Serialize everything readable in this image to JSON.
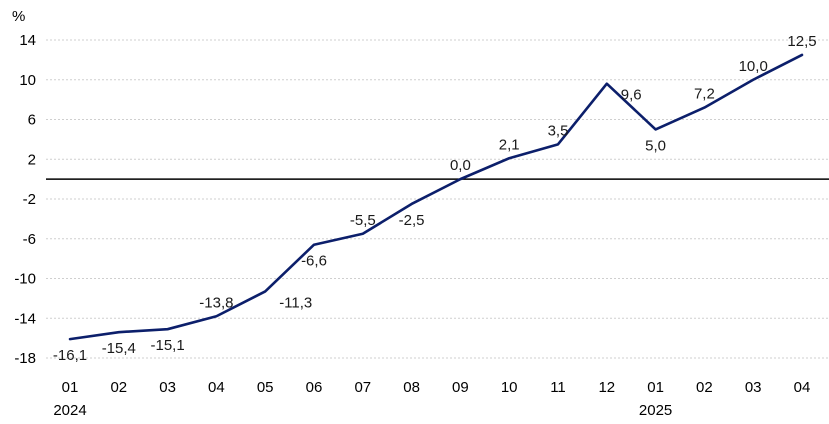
{
  "chart_data": {
    "type": "line",
    "ylabel": "%",
    "ylim": [
      -18,
      14
    ],
    "yticks": [
      "14",
      "10",
      "6",
      "2",
      "-2",
      "-6",
      "-10",
      "-14",
      "-18"
    ],
    "ytick_values": [
      14,
      10,
      6,
      2,
      -2,
      -6,
      -10,
      -14,
      -18
    ],
    "categories": [
      "01",
      "02",
      "03",
      "04",
      "05",
      "06",
      "07",
      "08",
      "09",
      "10",
      "11",
      "12",
      "01",
      "02",
      "03",
      "04"
    ],
    "year_labels": [
      {
        "index": 0,
        "text": "2024"
      },
      {
        "index": 12,
        "text": "2025"
      }
    ],
    "series": [
      {
        "values": [
          -16.1,
          -15.4,
          -15.1,
          -13.8,
          -11.3,
          -6.6,
          -5.5,
          -2.5,
          0.0,
          2.1,
          3.5,
          9.6,
          5.0,
          7.2,
          10.0,
          12.5
        ],
        "color": "#0c1f6b"
      }
    ],
    "data_labels": [
      {
        "index": 0,
        "text": "-16,1",
        "pos": "below"
      },
      {
        "index": 1,
        "text": "-15,4",
        "pos": "below"
      },
      {
        "index": 2,
        "text": "-15,1",
        "pos": "below"
      },
      {
        "index": 3,
        "text": "-13,8",
        "pos": "above"
      },
      {
        "index": 4,
        "text": "-11,3",
        "pos": "right"
      },
      {
        "index": 5,
        "text": "-6,6",
        "pos": "below"
      },
      {
        "index": 6,
        "text": "-5,5",
        "pos": "above"
      },
      {
        "index": 7,
        "text": "-2,5",
        "pos": "below"
      },
      {
        "index": 8,
        "text": "0,0",
        "pos": "above"
      },
      {
        "index": 9,
        "text": "2,1",
        "pos": "above"
      },
      {
        "index": 10,
        "text": "3,5",
        "pos": "above"
      },
      {
        "index": 11,
        "text": "9,6",
        "pos": "right"
      },
      {
        "index": 12,
        "text": "5,0",
        "pos": "below"
      },
      {
        "index": 13,
        "text": "7,2",
        "pos": "above"
      },
      {
        "index": 14,
        "text": "10,0",
        "pos": "above"
      },
      {
        "index": 15,
        "text": "12,5",
        "pos": "above"
      }
    ],
    "grid": true,
    "zero_line": true
  }
}
